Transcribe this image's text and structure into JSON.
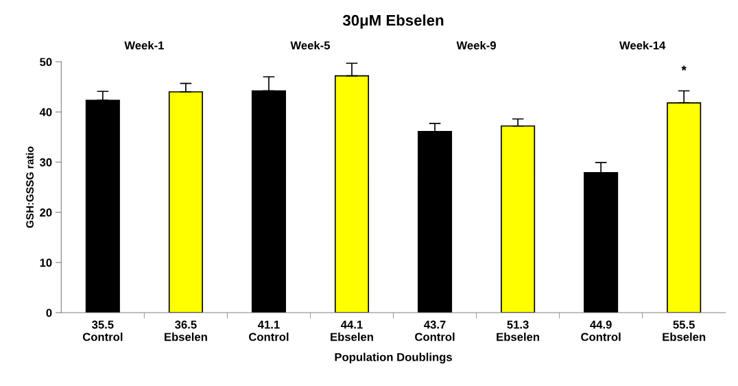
{
  "chart_data": {
    "type": "bar",
    "title": "30μM Ebselen",
    "xlabel": "Population Doublings",
    "ylabel": "GSH:GSSG ratio",
    "categories": [
      "35.5\nControl",
      "36.5\nEbselen",
      "41.1\nControl",
      "44.1\nEbselen",
      "43.7\nControl",
      "51.3\nEbselen",
      "44.9\nControl",
      "55.5\nEbselen"
    ],
    "values": [
      42.3,
      44.0,
      44.2,
      47.2,
      36.1,
      37.2,
      27.9,
      41.8
    ],
    "colors": [
      "#000000",
      "#ffff00",
      "#000000",
      "#ffff00",
      "#000000",
      "#ffff00",
      "#000000",
      "#ffff00"
    ],
    "errors": [
      [
        42.3,
        44.1
      ],
      [
        44.0,
        45.7
      ],
      [
        44.2,
        47.0
      ],
      [
        47.2,
        49.7
      ],
      [
        36.1,
        37.7
      ],
      [
        37.2,
        38.6
      ],
      [
        27.9,
        29.9
      ],
      [
        41.8,
        44.2
      ]
    ],
    "ylim": [
      0,
      50
    ],
    "yticks": [
      0,
      10,
      20,
      30,
      40,
      50
    ],
    "grid": false,
    "legend": false,
    "annotations": [
      "Week-1",
      "Week-5",
      "Week-9",
      "Week-14",
      "*"
    ]
  }
}
